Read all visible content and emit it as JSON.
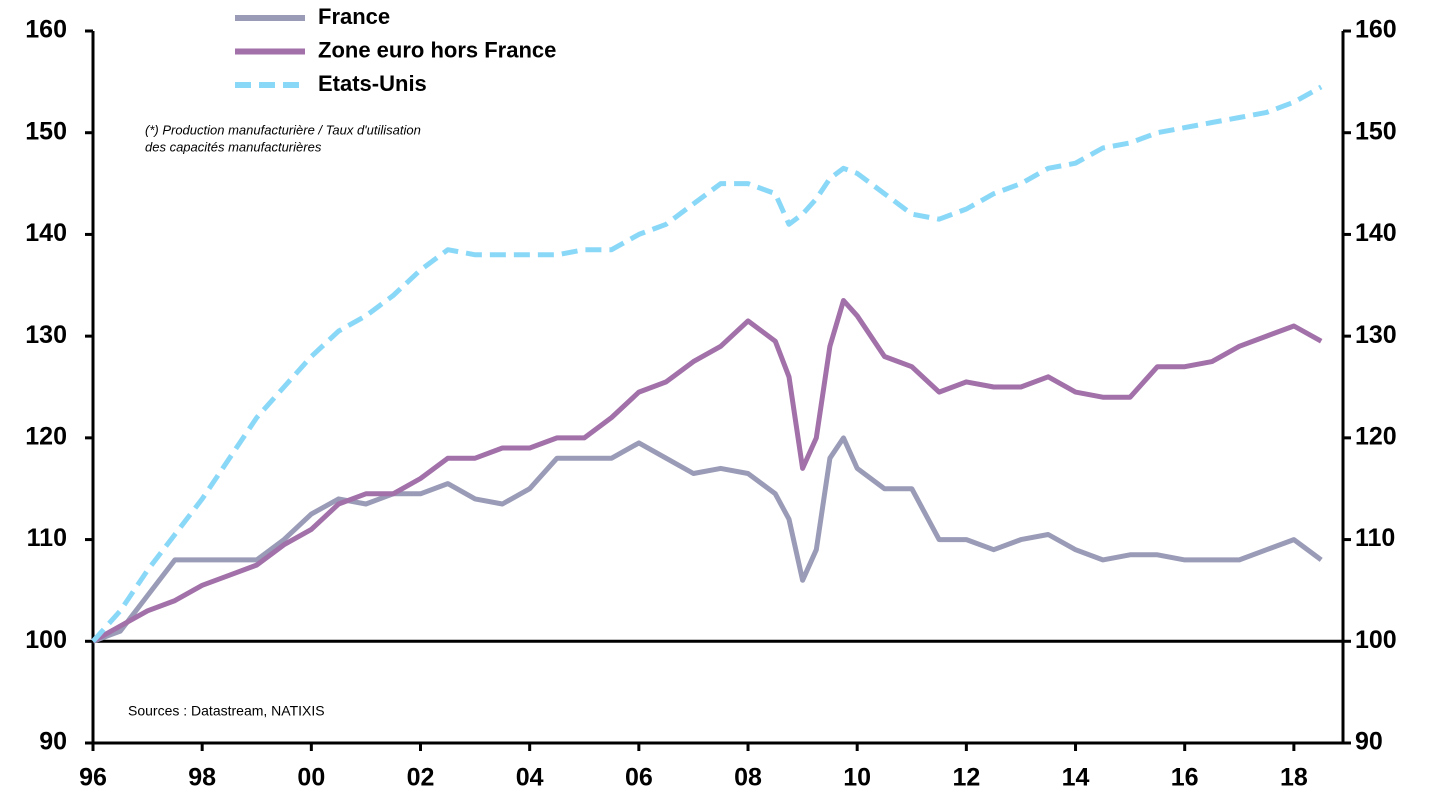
{
  "chart_data": {
    "type": "line",
    "annotations": [
      "(*) Production manufacturière / Taux d'utilisation",
      "des capacités manufacturières"
    ],
    "source": "Sources : Datastream, NATIXIS",
    "x": [
      1996,
      1996.5,
      1997,
      1997.5,
      1998,
      1998.5,
      1999,
      1999.5,
      2000,
      2000.5,
      2001,
      2001.5,
      2002,
      2002.5,
      2003,
      2003.5,
      2004,
      2004.5,
      2005,
      2005.5,
      2006,
      2006.5,
      2007,
      2007.5,
      2008,
      2008.5,
      2008.75,
      2009,
      2009.25,
      2009.5,
      2009.75,
      2010,
      2010.5,
      2011,
      2011.5,
      2012,
      2012.5,
      2013,
      2013.5,
      2014,
      2014.5,
      2015,
      2015.5,
      2016,
      2016.5,
      2017,
      2017.5,
      2018,
      2018.5
    ],
    "series": [
      {
        "name": "France",
        "color": "#9a9bb7",
        "dashed": false,
        "values": [
          100,
          101,
          104.5,
          108,
          108,
          108,
          108,
          110,
          112.5,
          114,
          113.5,
          114.5,
          114.5,
          115.5,
          114,
          113.5,
          115,
          118,
          118,
          118,
          119.5,
          118,
          116.5,
          117,
          116.5,
          114.5,
          112,
          106,
          109,
          118,
          120,
          117,
          115,
          115,
          110,
          110,
          109,
          110,
          110.5,
          109,
          108,
          108.5,
          108.5,
          108,
          108,
          108,
          109,
          110,
          108
        ]
      },
      {
        "name": "Zone euro hors France",
        "color": "#a271a9",
        "dashed": false,
        "values": [
          100,
          101.5,
          103,
          104,
          105.5,
          106.5,
          107.5,
          109.5,
          111,
          113.5,
          114.5,
          114.5,
          116,
          118,
          118,
          119,
          119,
          120,
          120,
          122,
          124.5,
          125.5,
          127.5,
          129,
          131.5,
          129.5,
          126,
          117,
          120,
          129,
          133.5,
          132,
          128,
          127,
          124.5,
          125.5,
          125,
          125,
          126,
          124.5,
          124,
          124,
          127,
          127,
          127.5,
          129,
          130,
          131,
          129.5
        ]
      },
      {
        "name": "Etats-Unis",
        "color": "#8ad8f8",
        "dashed": true,
        "values": [
          100,
          103,
          107,
          110.5,
          114,
          118,
          122,
          125,
          128,
          130.5,
          132,
          134,
          136.5,
          138.5,
          138,
          138,
          138,
          138,
          138.5,
          138.5,
          140,
          141,
          143,
          145,
          145,
          144,
          141,
          142,
          143.5,
          145.5,
          146.5,
          146,
          144,
          142,
          141.5,
          142.5,
          144,
          145,
          146.5,
          147,
          148.5,
          149,
          150,
          150.5,
          151,
          151.5,
          152,
          153,
          154.5
        ]
      }
    ],
    "xlim": [
      1996,
      2018.9
    ],
    "xticks": [
      {
        "value": 1996,
        "label": "96"
      },
      {
        "value": 1998,
        "label": "98"
      },
      {
        "value": 2000,
        "label": "00"
      },
      {
        "value": 2002,
        "label": "02"
      },
      {
        "value": 2004,
        "label": "04"
      },
      {
        "value": 2006,
        "label": "06"
      },
      {
        "value": 2008,
        "label": "08"
      },
      {
        "value": 2010,
        "label": "10"
      },
      {
        "value": 2012,
        "label": "12"
      },
      {
        "value": 2014,
        "label": "14"
      },
      {
        "value": 2016,
        "label": "16"
      },
      {
        "value": 2018,
        "label": "18"
      }
    ],
    "ylim": [
      90,
      160
    ],
    "yticks": [
      90,
      100,
      110,
      120,
      130,
      140,
      150,
      160
    ],
    "y2lim": [
      90,
      160
    ],
    "y2ticks": [
      90,
      100,
      110,
      120,
      130,
      140,
      150,
      160
    ],
    "reference_line": 100
  }
}
